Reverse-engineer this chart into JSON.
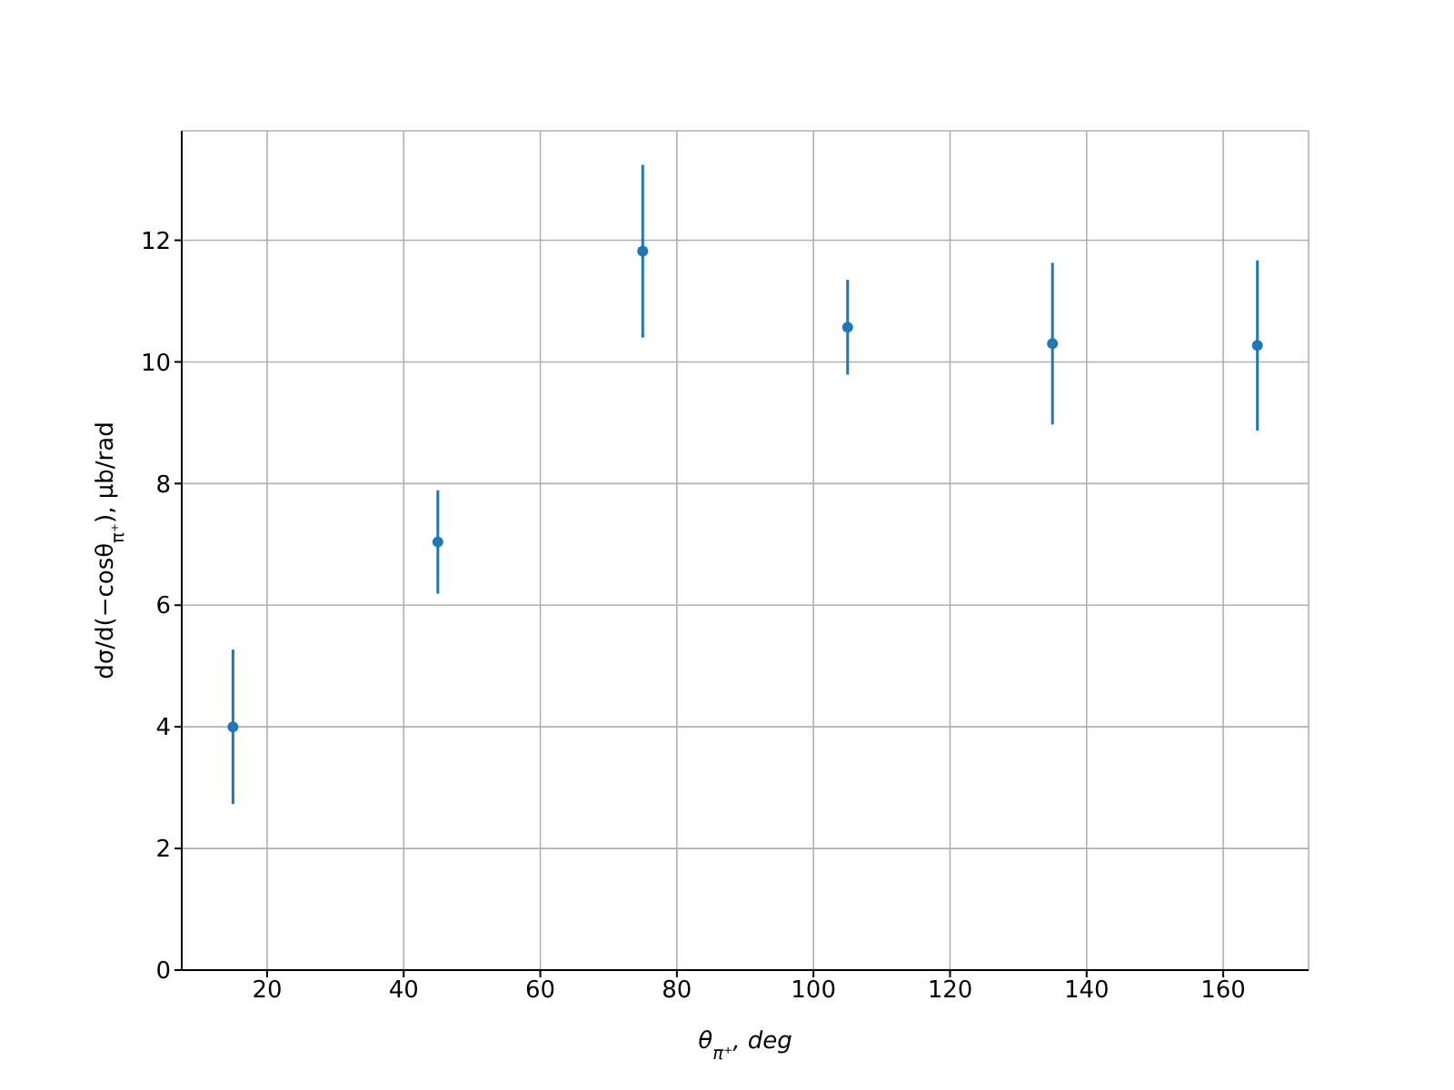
{
  "chart_data": {
    "type": "scatter",
    "xlabel": "θ$_{π⁺}$, deg",
    "ylabel": "dσ/d(−cosθ$_{π⁺}$), μb/rad",
    "x": [
      15,
      45,
      75,
      105,
      135,
      165
    ],
    "series": [
      {
        "color": "#1f77b4",
        "values": [
          4.0,
          7.04,
          11.82,
          10.57,
          10.3,
          10.27
        ],
        "errors": [
          1.27,
          0.85,
          1.42,
          0.78,
          1.33,
          1.4
        ]
      }
    ],
    "xlim": [
      7.5,
      172.5
    ],
    "xticks": [
      20,
      40,
      60,
      80,
      100,
      120,
      140,
      160
    ],
    "ylim": [
      0,
      13.8
    ],
    "yticks": [
      0,
      2,
      4,
      6,
      8,
      10,
      12
    ],
    "grid": true,
    "marker": "circle"
  }
}
